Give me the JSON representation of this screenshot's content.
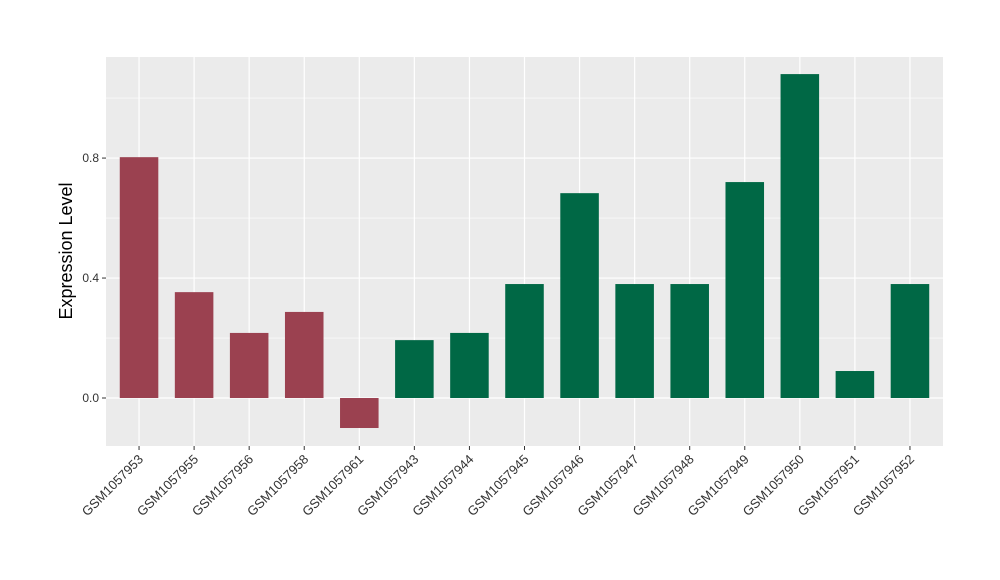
{
  "chart_data": {
    "type": "bar",
    "title": "",
    "xlabel": "",
    "ylabel": "Expression Level",
    "ylim": [
      -0.16,
      1.137
    ],
    "yticks": [
      0.0,
      0.4,
      0.8
    ],
    "ytick_labels": [
      "0.0",
      "0.4",
      "0.8"
    ],
    "grid": true,
    "legend": "none",
    "categories": [
      "GSM1057953",
      "GSM1057955",
      "GSM1057956",
      "GSM1057958",
      "GSM1057961",
      "GSM1057943",
      "GSM1057944",
      "GSM1057945",
      "GSM1057946",
      "GSM1057947",
      "GSM1057948",
      "GSM1057949",
      "GSM1057950",
      "GSM1057951",
      "GSM1057952"
    ],
    "values": [
      0.803,
      0.353,
      0.217,
      0.287,
      -0.1,
      0.193,
      0.217,
      0.38,
      0.683,
      0.38,
      0.38,
      0.72,
      1.08,
      0.09,
      0.38
    ],
    "groups": [
      "a",
      "a",
      "a",
      "a",
      "a",
      "b",
      "b",
      "b",
      "b",
      "b",
      "b",
      "b",
      "b",
      "b",
      "b"
    ],
    "colors": {
      "a": "#9B4150",
      "b": "#006845"
    },
    "panel_bg": "#EBEBEB"
  }
}
